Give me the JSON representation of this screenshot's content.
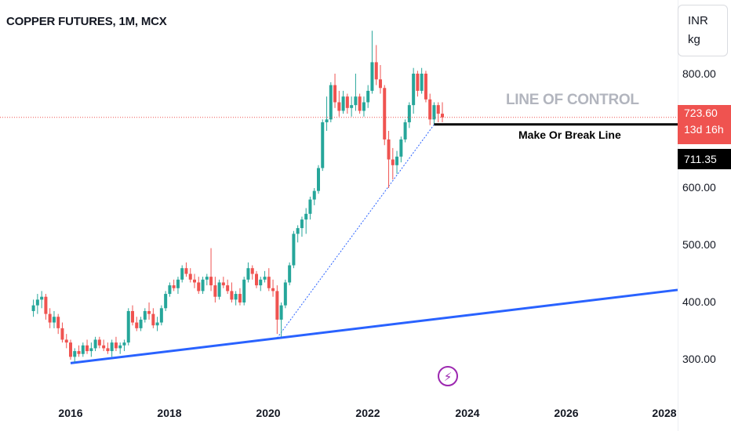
{
  "title": "COPPER FUTURES, 1M, MCX",
  "currency": "INR",
  "unit": "kg",
  "price_axis_labels": [
    "800.00",
    "600.00",
    "500.00",
    "400.00",
    "300.00"
  ],
  "time_axis_labels": [
    "2016",
    "2018",
    "2020",
    "2022",
    "2024",
    "2026",
    "2028"
  ],
  "last_price": "723.60",
  "countdown": "13d 16h",
  "line_price": "711.35",
  "annotations": {
    "line_of_control": "LINE OF CONTROL",
    "make_or_break": "Make Or Break Line"
  },
  "colors": {
    "up": "#26a69a",
    "down": "#ef5350",
    "trend": "#2962ff",
    "level": "#000000",
    "purple": "#9c27b0"
  },
  "chart_data": {
    "type": "candlestick",
    "title": "COPPER FUTURES, 1M, MCX",
    "ylim": [
      225,
      915
    ],
    "xrange": [
      2014.9,
      2028.3
    ],
    "candles": [
      [
        2015.25,
        385,
        405,
        375,
        395
      ],
      [
        2015.333,
        395,
        415,
        380,
        405
      ],
      [
        2015.417,
        405,
        420,
        390,
        410
      ],
      [
        2015.5,
        410,
        415,
        370,
        380
      ],
      [
        2015.583,
        380,
        390,
        355,
        365
      ],
      [
        2015.667,
        365,
        385,
        355,
        375
      ],
      [
        2015.75,
        375,
        380,
        345,
        355
      ],
      [
        2015.833,
        355,
        365,
        330,
        335
      ],
      [
        2015.917,
        335,
        345,
        320,
        330
      ],
      [
        2016.0,
        330,
        335,
        300,
        305
      ],
      [
        2016.083,
        305,
        320,
        295,
        315
      ],
      [
        2016.167,
        315,
        325,
        305,
        310
      ],
      [
        2016.25,
        310,
        330,
        305,
        325
      ],
      [
        2016.333,
        325,
        335,
        310,
        315
      ],
      [
        2016.417,
        315,
        330,
        305,
        320
      ],
      [
        2016.5,
        320,
        340,
        315,
        335
      ],
      [
        2016.583,
        335,
        340,
        320,
        325
      ],
      [
        2016.667,
        325,
        335,
        315,
        320
      ],
      [
        2016.75,
        320,
        330,
        310,
        315
      ],
      [
        2016.833,
        315,
        335,
        305,
        330
      ],
      [
        2016.917,
        330,
        340,
        315,
        320
      ],
      [
        2017.0,
        320,
        330,
        310,
        325
      ],
      [
        2017.083,
        325,
        335,
        315,
        330
      ],
      [
        2017.167,
        330,
        390,
        325,
        385
      ],
      [
        2017.25,
        385,
        395,
        360,
        365
      ],
      [
        2017.333,
        365,
        375,
        350,
        355
      ],
      [
        2017.417,
        355,
        375,
        350,
        370
      ],
      [
        2017.5,
        370,
        390,
        365,
        385
      ],
      [
        2017.583,
        385,
        400,
        370,
        380
      ],
      [
        2017.667,
        380,
        390,
        355,
        360
      ],
      [
        2017.75,
        360,
        375,
        350,
        365
      ],
      [
        2017.833,
        365,
        395,
        360,
        390
      ],
      [
        2017.917,
        390,
        420,
        385,
        415
      ],
      [
        2018.0,
        415,
        435,
        410,
        430
      ],
      [
        2018.083,
        430,
        440,
        420,
        425
      ],
      [
        2018.167,
        425,
        445,
        415,
        440
      ],
      [
        2018.25,
        440,
        465,
        435,
        460
      ],
      [
        2018.333,
        460,
        470,
        445,
        450
      ],
      [
        2018.417,
        450,
        460,
        435,
        440
      ],
      [
        2018.5,
        440,
        450,
        425,
        435
      ],
      [
        2018.583,
        435,
        445,
        415,
        420
      ],
      [
        2018.667,
        420,
        445,
        415,
        440
      ],
      [
        2018.75,
        440,
        450,
        430,
        445
      ],
      [
        2018.833,
        445,
        495,
        420,
        430
      ],
      [
        2018.917,
        430,
        445,
        400,
        410
      ],
      [
        2019.0,
        410,
        440,
        405,
        435
      ],
      [
        2019.083,
        435,
        445,
        425,
        430
      ],
      [
        2019.167,
        430,
        440,
        415,
        420
      ],
      [
        2019.25,
        420,
        435,
        400,
        405
      ],
      [
        2019.333,
        405,
        420,
        395,
        415
      ],
      [
        2019.417,
        415,
        425,
        395,
        400
      ],
      [
        2019.5,
        400,
        445,
        395,
        440
      ],
      [
        2019.583,
        440,
        470,
        435,
        460
      ],
      [
        2019.667,
        460,
        465,
        440,
        450
      ],
      [
        2019.75,
        450,
        455,
        425,
        430
      ],
      [
        2019.833,
        430,
        445,
        420,
        440
      ],
      [
        2019.917,
        440,
        455,
        435,
        445
      ],
      [
        2020.0,
        445,
        460,
        420,
        425
      ],
      [
        2020.083,
        425,
        440,
        410,
        420
      ],
      [
        2020.167,
        420,
        430,
        345,
        370
      ],
      [
        2020.25,
        370,
        400,
        340,
        395
      ],
      [
        2020.333,
        395,
        440,
        390,
        435
      ],
      [
        2020.417,
        435,
        470,
        430,
        465
      ],
      [
        2020.5,
        465,
        525,
        460,
        520
      ],
      [
        2020.583,
        520,
        535,
        505,
        530
      ],
      [
        2020.667,
        530,
        550,
        515,
        545
      ],
      [
        2020.75,
        545,
        565,
        520,
        555
      ],
      [
        2020.833,
        555,
        585,
        545,
        580
      ],
      [
        2020.917,
        580,
        600,
        570,
        595
      ],
      [
        2021.0,
        595,
        640,
        590,
        635
      ],
      [
        2021.083,
        635,
        720,
        630,
        715
      ],
      [
        2021.167,
        715,
        760,
        700,
        720
      ],
      [
        2021.25,
        720,
        785,
        715,
        780
      ],
      [
        2021.333,
        780,
        800,
        740,
        750
      ],
      [
        2021.417,
        750,
        770,
        725,
        735
      ],
      [
        2021.5,
        735,
        770,
        730,
        760
      ],
      [
        2021.583,
        760,
        765,
        730,
        740
      ],
      [
        2021.667,
        740,
        760,
        725,
        745
      ],
      [
        2021.75,
        745,
        800,
        735,
        760
      ],
      [
        2021.833,
        760,
        765,
        730,
        735
      ],
      [
        2021.917,
        735,
        760,
        725,
        750
      ],
      [
        2022.0,
        750,
        780,
        740,
        770
      ],
      [
        2022.083,
        770,
        875,
        765,
        820
      ],
      [
        2022.167,
        820,
        850,
        780,
        790
      ],
      [
        2022.25,
        790,
        815,
        765,
        775
      ],
      [
        2022.333,
        775,
        780,
        675,
        685
      ],
      [
        2022.417,
        685,
        700,
        600,
        650
      ],
      [
        2022.5,
        650,
        670,
        615,
        640
      ],
      [
        2022.583,
        640,
        665,
        625,
        655
      ],
      [
        2022.667,
        655,
        690,
        645,
        685
      ],
      [
        2022.75,
        685,
        720,
        680,
        715
      ],
      [
        2022.833,
        715,
        750,
        705,
        745
      ],
      [
        2022.917,
        745,
        810,
        730,
        800
      ],
      [
        2023.0,
        800,
        805,
        760,
        770
      ],
      [
        2023.083,
        770,
        810,
        765,
        800
      ],
      [
        2023.167,
        800,
        805,
        750,
        755
      ],
      [
        2023.25,
        755,
        765,
        710,
        720
      ],
      [
        2023.333,
        720,
        750,
        712,
        745
      ],
      [
        2023.417,
        745,
        750,
        715,
        730
      ],
      [
        2023.5,
        730,
        750,
        715,
        723.6
      ]
    ],
    "lines": [
      {
        "kind": "trendline",
        "from": [
          2016.0,
          294
        ],
        "to": [
          2028.3,
          422
        ]
      },
      {
        "kind": "trendline",
        "from": [
          2020.167,
          338
        ],
        "to": [
          2023.333,
          711
        ]
      },
      {
        "kind": "horizontal",
        "from_x": 2023.333,
        "y": 711.35
      },
      {
        "kind": "price_line",
        "y": 723.6
      }
    ]
  }
}
